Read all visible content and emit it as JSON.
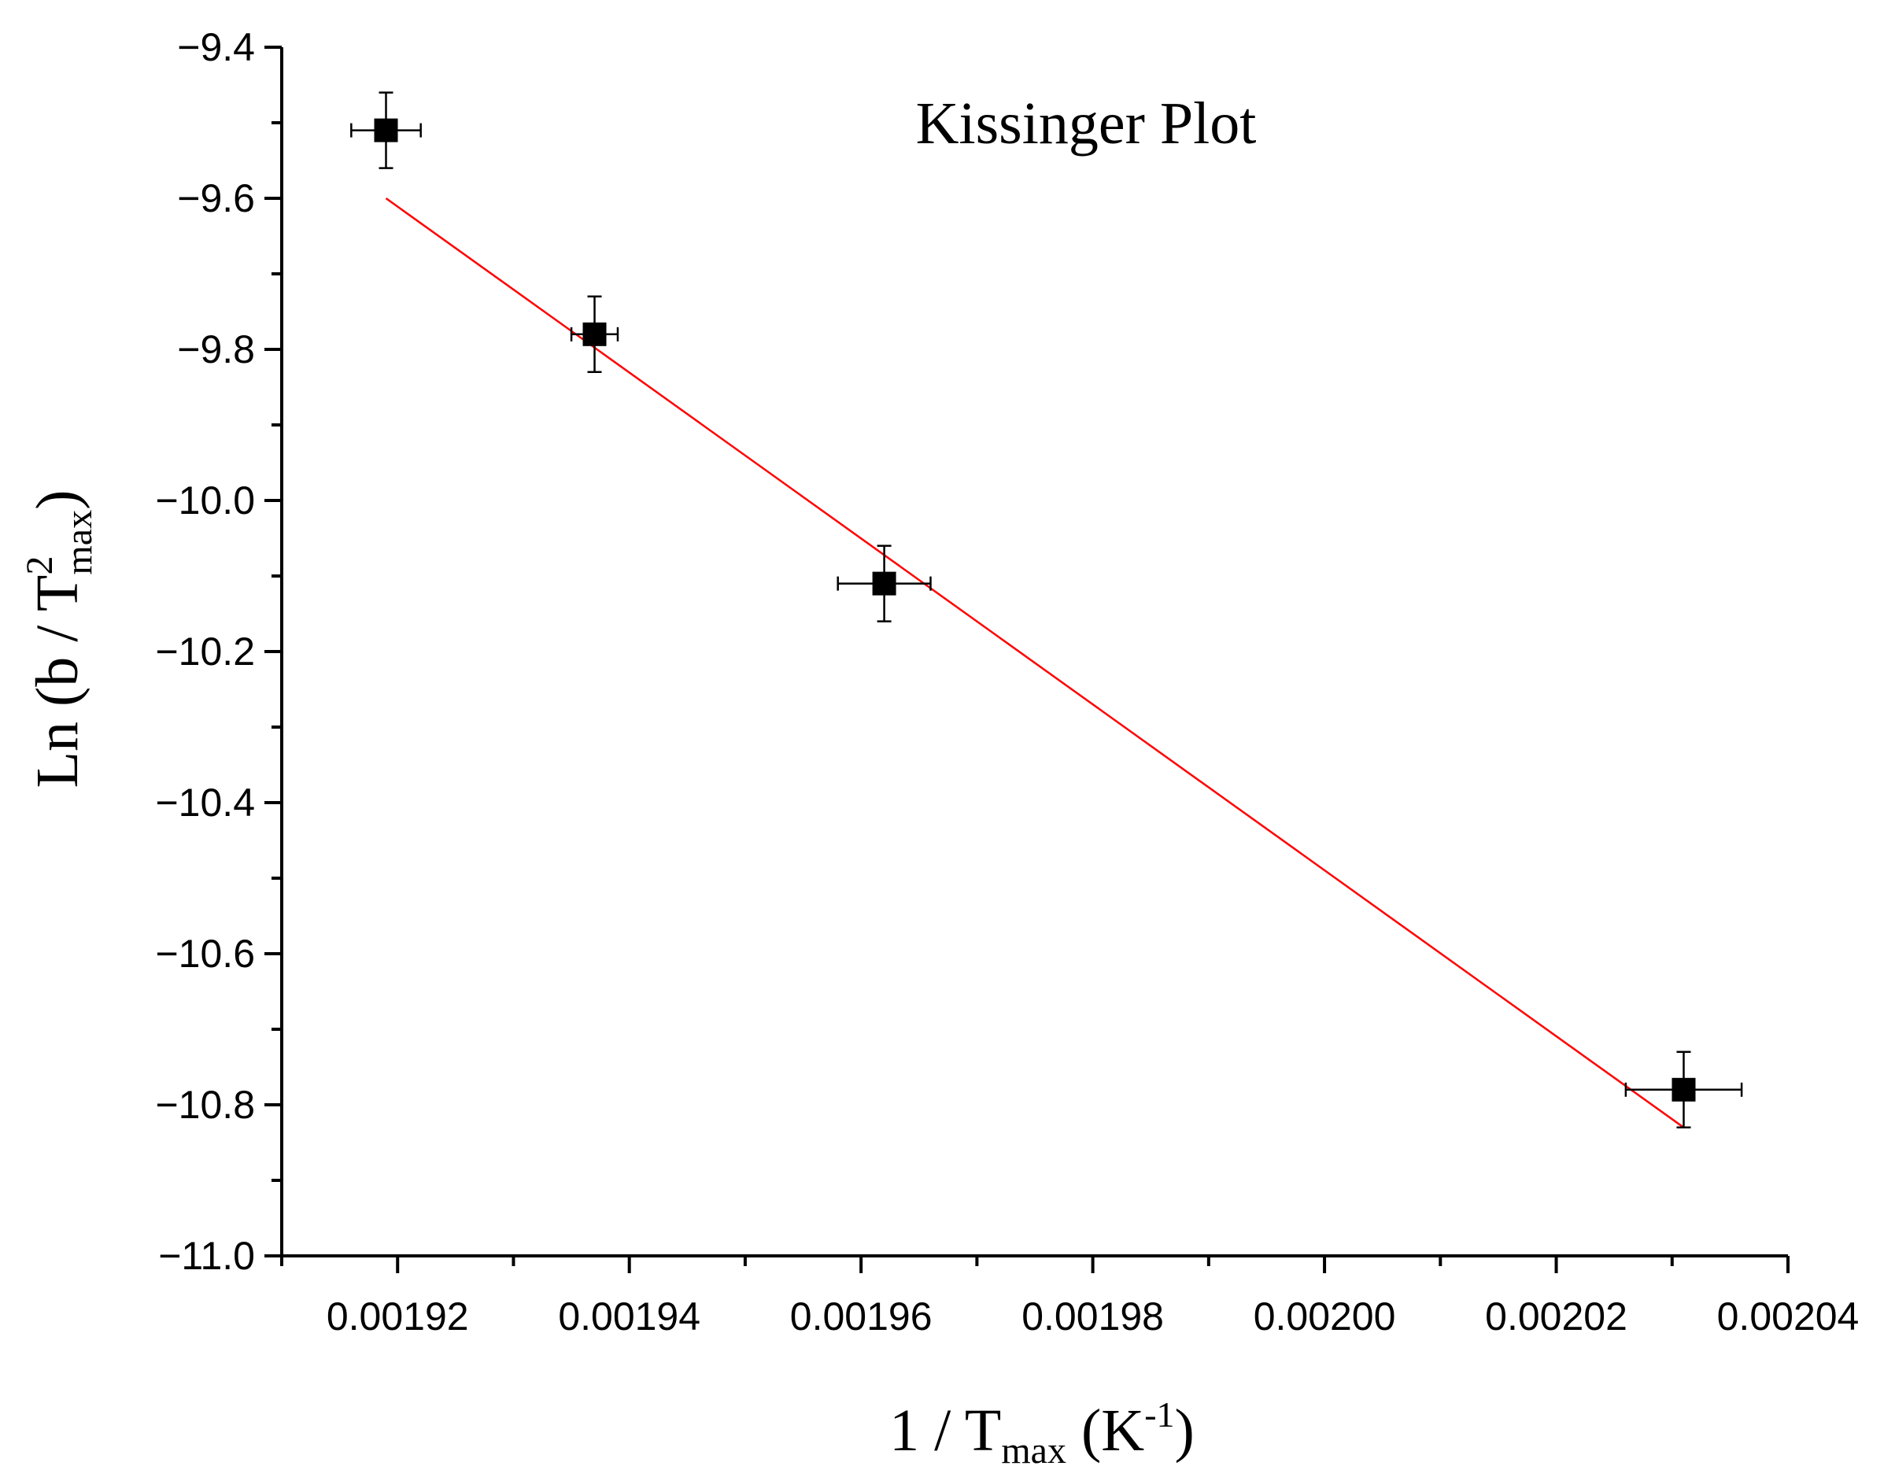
{
  "chart_data": {
    "type": "scatter",
    "title": "Kissinger Plot",
    "xlabel": {
      "base": "1 / T",
      "sub": "max",
      "unit_open": " (K",
      "unit_sup": "-1",
      "unit_close": ")"
    },
    "ylabel": {
      "prefix": "Ln (b / T",
      "sup": "2",
      "sub": "max",
      "suffix": ")"
    },
    "xlim": [
      0.00191,
      0.00204
    ],
    "ylim": [
      -11.0,
      -9.4
    ],
    "x_ticks": [
      0.00192,
      0.00194,
      0.00196,
      0.00198,
      0.002,
      0.00202,
      0.00204
    ],
    "x_tick_labels": [
      "0.00192",
      "0.00194",
      "0.00196",
      "0.00198",
      "0.00200",
      "0.00202",
      "0.00204"
    ],
    "x_minor_ticks": [
      0.00191,
      0.00193,
      0.00195,
      0.00197,
      0.00199,
      0.00201,
      0.00203
    ],
    "y_ticks": [
      -9.4,
      -9.6,
      -9.8,
      -10.0,
      -10.2,
      -10.4,
      -10.6,
      -10.8,
      -11.0
    ],
    "y_tick_labels": [
      "−9.4",
      "−9.6",
      "−9.8",
      "−10.0",
      "−10.2",
      "−10.4",
      "−10.6",
      "−10.8",
      "−11.0"
    ],
    "y_minor_ticks": [
      -9.5,
      -9.7,
      -9.9,
      -10.1,
      -10.3,
      -10.5,
      -10.7,
      -10.9
    ],
    "grid": false,
    "series": [
      {
        "type": "scatter",
        "marker": "square",
        "color": "#000000",
        "x": [
          0.001919,
          0.001937,
          0.001962,
          0.002031
        ],
        "y": [
          -9.51,
          -9.78,
          -10.11,
          -10.78
        ],
        "x_err": [
          3e-06,
          2e-06,
          4e-06,
          5e-06
        ],
        "y_err": [
          0.05,
          0.05,
          0.05,
          0.05
        ]
      },
      {
        "type": "line",
        "color": "#ff0000",
        "x": [
          0.001919,
          0.002031
        ],
        "y": [
          -9.6,
          -10.83
        ]
      }
    ]
  }
}
